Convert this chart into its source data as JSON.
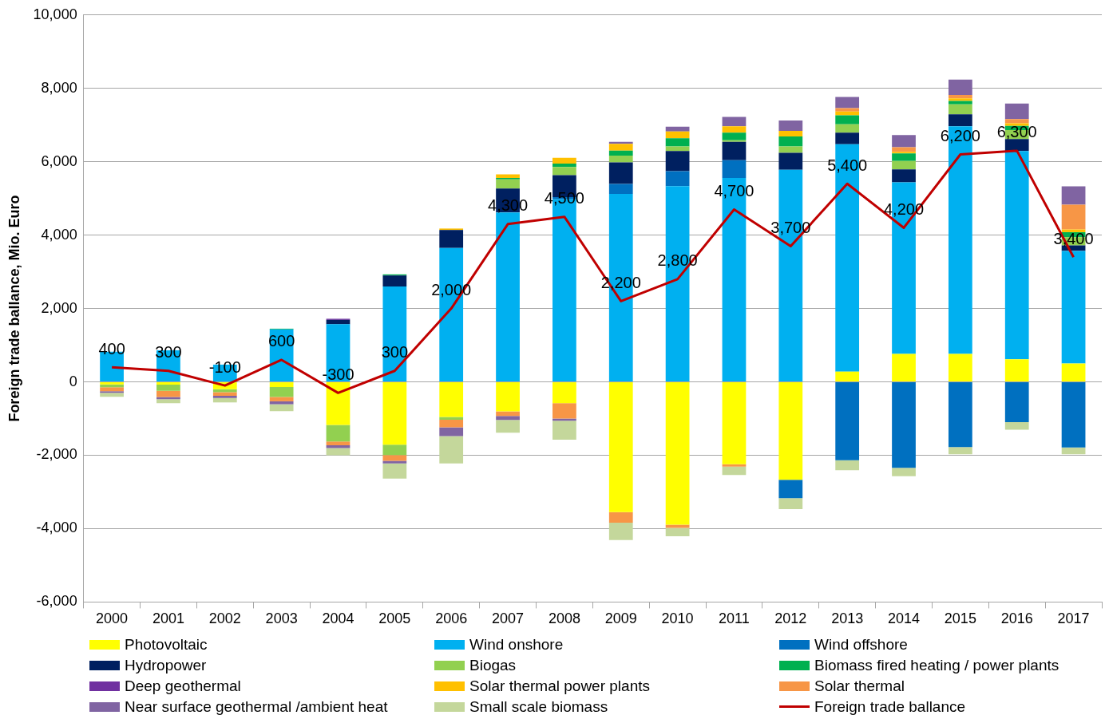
{
  "chart_data": {
    "type": "bar",
    "stacked": true,
    "ylabel": "Foreign trade ballance, Mio. Euro",
    "categories": [
      "2000",
      "2001",
      "2002",
      "2003",
      "2004",
      "2005",
      "2006",
      "2007",
      "2008",
      "2009",
      "2010",
      "2011",
      "2012",
      "2013",
      "2014",
      "2015",
      "2016",
      "2017"
    ],
    "ylim": [
      -6000,
      10000
    ],
    "yticks": [
      {
        "value": -6000,
        "label": "-6,000"
      },
      {
        "value": -4000,
        "label": "-4,000"
      },
      {
        "value": -2000,
        "label": "-2,000"
      },
      0,
      {
        "value": 2000,
        "label": "2,000"
      },
      {
        "value": 4000,
        "label": "4,000"
      },
      {
        "value": 6000,
        "label": "6,000"
      },
      {
        "value": 8000,
        "label": "8,000"
      },
      {
        "value": 10000,
        "label": "10,000"
      }
    ],
    "grid": "y",
    "legend": "bottom",
    "marker": "none",
    "series": [
      {
        "name": "Photovoltaic",
        "color": "#ffff00",
        "values": [
          -70,
          -75,
          -200,
          -140,
          -1175,
          -1710,
          -955,
          -805,
          -580,
          -3550,
          -3890,
          -2245,
          -2670,
          280,
          765,
          765,
          615,
          500
        ]
      },
      {
        "name": "Wind onshore",
        "color": "#00b0f0",
        "values": [
          820,
          860,
          470,
          1430,
          1570,
          2600,
          3650,
          4620,
          4975,
          5125,
          5335,
          5560,
          5780,
          6200,
          4675,
          6200,
          5675,
          3070
        ]
      },
      {
        "name": "Wind offshore",
        "color": "#0070c0",
        "values": [
          null,
          null,
          null,
          null,
          null,
          null,
          null,
          null,
          60,
          270,
          410,
          485,
          -500,
          -2135,
          -2340,
          -1775,
          -1095,
          -1790
        ]
      },
      {
        "name": "Hydropower",
        "color": "#002060",
        "values": [
          null,
          null,
          null,
          null,
          120,
          300,
          490,
          650,
          600,
          590,
          545,
          500,
          465,
          315,
          350,
          330,
          330,
          150
        ]
      },
      {
        "name": "Biogas",
        "color": "#92d050",
        "values": [
          -75,
          -170,
          -80,
          -270,
          -450,
          -285,
          -75,
          250,
          225,
          185,
          125,
          40,
          170,
          225,
          230,
          270,
          245,
          225
        ]
      },
      {
        "name": "Biomass fired heating / power plants",
        "color": "#00b050",
        "values": [
          null,
          null,
          null,
          20,
          null,
          30,
          null,
          40,
          90,
          135,
          225,
          210,
          275,
          245,
          210,
          90,
          110,
          135
        ]
      },
      {
        "name": "Deep geothermal",
        "color": "#7030a0",
        "values": [
          null,
          null,
          null,
          null,
          30,
          null,
          null,
          null,
          null,
          null,
          null,
          null,
          null,
          null,
          null,
          null,
          null,
          null
        ]
      },
      {
        "name": "Solar thermal power plants",
        "color": "#ffc000",
        "values": [
          null,
          null,
          null,
          null,
          null,
          null,
          40,
          95,
          155,
          185,
          185,
          170,
          150,
          105,
          40,
          75,
          75,
          75
        ]
      },
      {
        "name": "Solar thermal",
        "color": "#f79646",
        "values": [
          -110,
          -165,
          -100,
          -120,
          -105,
          -155,
          -210,
          -125,
          -420,
          -290,
          -90,
          -65,
          null,
          90,
          125,
          90,
          110,
          675
        ]
      },
      {
        "name": "Near surface geothermal /ambient heat",
        "color": "#8064a2",
        "values": [
          -45,
          -60,
          -60,
          -80,
          -75,
          -75,
          -240,
          -110,
          -60,
          50,
          130,
          260,
          285,
          305,
          330,
          420,
          425,
          500
        ]
      },
      {
        "name": "Small scale biomass",
        "color": "#c4d79b",
        "values": [
          -105,
          -110,
          -120,
          -190,
          -195,
          -410,
          -745,
          -345,
          -515,
          -470,
          -225,
          -230,
          -300,
          -275,
          -230,
          -200,
          -210,
          -185
        ]
      },
      {
        "name": "Foreign trade ballance",
        "type": "line",
        "color": "#c00000",
        "values": [
          400,
          300,
          -100,
          600,
          -300,
          300,
          2000,
          4300,
          4500,
          2200,
          2800,
          4700,
          3700,
          5400,
          4200,
          6200,
          6300,
          3400
        ],
        "value_labels": [
          "400",
          "300",
          "-100",
          "600",
          "-300",
          "300",
          "2,000",
          "4,300",
          "4,500",
          "2,200",
          "2,800",
          "4,700",
          "3,700",
          "5,400",
          "4,200",
          "6,200",
          "6,300",
          "3,400"
        ]
      }
    ]
  }
}
